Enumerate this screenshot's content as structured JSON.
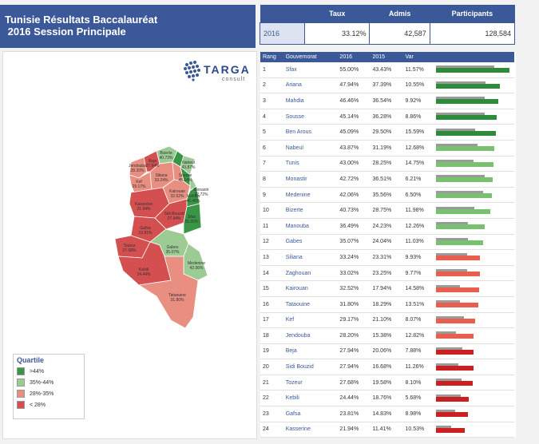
{
  "header": {
    "title_line1": "Tunisie Résultats Baccalauréat",
    "title_line2": " 2016 Session Principale"
  },
  "kpi": {
    "col_taux": "Taux",
    "col_admis": "Admis",
    "col_participants": "Participants",
    "year": "2016",
    "taux": "33.12%",
    "admis": "42,587",
    "participants": "128,584"
  },
  "logo": {
    "name": "TARGA",
    "tagline": "consult"
  },
  "legend": {
    "title": "Quartile",
    "items": [
      {
        "label": ">44%",
        "color": "#3a9646"
      },
      {
        "label": "35%-44%",
        "color": "#9dcb94"
      },
      {
        "label": "28%-35%",
        "color": "#e98f82"
      },
      {
        "label": "< 28%",
        "color": "#d44f4f"
      }
    ]
  },
  "colors": {
    "dark_green": "#2e8b3a",
    "light_green": "#78c26f",
    "salmon": "#e8604d",
    "red": "#cc2020",
    "bar2015": "#9a9a9a"
  },
  "table": {
    "headers": [
      "Rang",
      "Gouvernorat",
      "2016",
      "2015",
      "Var"
    ]
  },
  "map_labels": [
    {
      "name": "Jendouba",
      "value": "28.20%"
    },
    {
      "name": "Beja",
      "value": "27.94%"
    },
    {
      "name": "Bizerte",
      "value": "40.73%"
    },
    {
      "name": "Nabeul",
      "value": "43.87%"
    },
    {
      "name": "Sousse",
      "value": "45.14%"
    },
    {
      "name": "Monastir",
      "value": "42.72%"
    },
    {
      "name": "Mahdia",
      "value": "46.46%"
    },
    {
      "name": "Kef",
      "value": "29.17%"
    },
    {
      "name": "Siliana",
      "value": "33.24%"
    },
    {
      "name": "Kairouan",
      "value": "32.52%"
    },
    {
      "name": "Kasserine",
      "value": "21.94%"
    },
    {
      "name": "Sidi Bouzid",
      "value": "27.94%"
    },
    {
      "name": "Sfax",
      "value": "55.00%"
    },
    {
      "name": "Gafsa",
      "value": "23.81%"
    },
    {
      "name": "Tozeur",
      "value": "27.68%"
    },
    {
      "name": "Kebili",
      "value": "24.44%"
    },
    {
      "name": "Gabes",
      "value": "35.07%"
    },
    {
      "name": "Medenine",
      "value": "42.06%"
    },
    {
      "name": "Tataouine",
      "value": "31.80%"
    }
  ],
  "chart_data": {
    "type": "bar",
    "categories": [
      "Sfax",
      "Ariana",
      "Mahdia",
      "Sousse",
      "Ben Arous",
      "Nabeul",
      "Tunis",
      "Monastir",
      "Medenine",
      "Bizerte",
      "Manouba",
      "Gabes",
      "Siliana",
      "Zaghouan",
      "Kairouan",
      "Tataouine",
      "Kef",
      "Jendouba",
      "Beja",
      "Sidi Bouzid",
      "Tozeur",
      "Kebili",
      "Gafsa",
      "Kasserine"
    ],
    "ranks": [
      "1",
      "2",
      "3",
      "4",
      "5",
      "6",
      "7",
      "8",
      "9",
      "10",
      "11",
      "12",
      "13",
      "14",
      "15",
      "16",
      "17",
      "18",
      "19",
      "20",
      "21",
      "22",
      "23",
      "24"
    ],
    "series": [
      {
        "name": "2016",
        "values": [
          55.0,
          47.94,
          46.46,
          45.14,
          45.09,
          43.87,
          43.0,
          42.72,
          42.06,
          40.73,
          36.49,
          35.07,
          33.24,
          33.02,
          32.52,
          31.8,
          29.17,
          28.2,
          27.94,
          27.94,
          27.68,
          24.44,
          23.81,
          21.94
        ]
      },
      {
        "name": "2015",
        "values": [
          43.43,
          37.39,
          36.54,
          36.28,
          29.5,
          31.19,
          28.25,
          36.51,
          35.56,
          28.75,
          24.23,
          24.04,
          23.31,
          23.25,
          17.94,
          18.29,
          21.1,
          15.38,
          20.06,
          16.68,
          19.58,
          18.76,
          14.83,
          11.41
        ]
      },
      {
        "name": "Var",
        "values": [
          11.57,
          10.55,
          9.92,
          8.86,
          15.59,
          12.68,
          14.75,
          6.21,
          6.5,
          11.98,
          12.26,
          11.03,
          9.93,
          9.77,
          14.58,
          13.51,
          8.07,
          12.82,
          7.88,
          11.26,
          8.1,
          5.68,
          8.98,
          10.53
        ]
      }
    ],
    "bar_colors": [
      "#2e8b3a",
      "#2e8b3a",
      "#2e8b3a",
      "#2e8b3a",
      "#2e8b3a",
      "#78c26f",
      "#78c26f",
      "#78c26f",
      "#78c26f",
      "#78c26f",
      "#78c26f",
      "#78c26f",
      "#e8604d",
      "#e8604d",
      "#e8604d",
      "#e8604d",
      "#e8604d",
      "#e8604d",
      "#cc2020",
      "#cc2020",
      "#cc2020",
      "#cc2020",
      "#cc2020",
      "#cc2020"
    ],
    "xlim": [
      0,
      57
    ]
  }
}
